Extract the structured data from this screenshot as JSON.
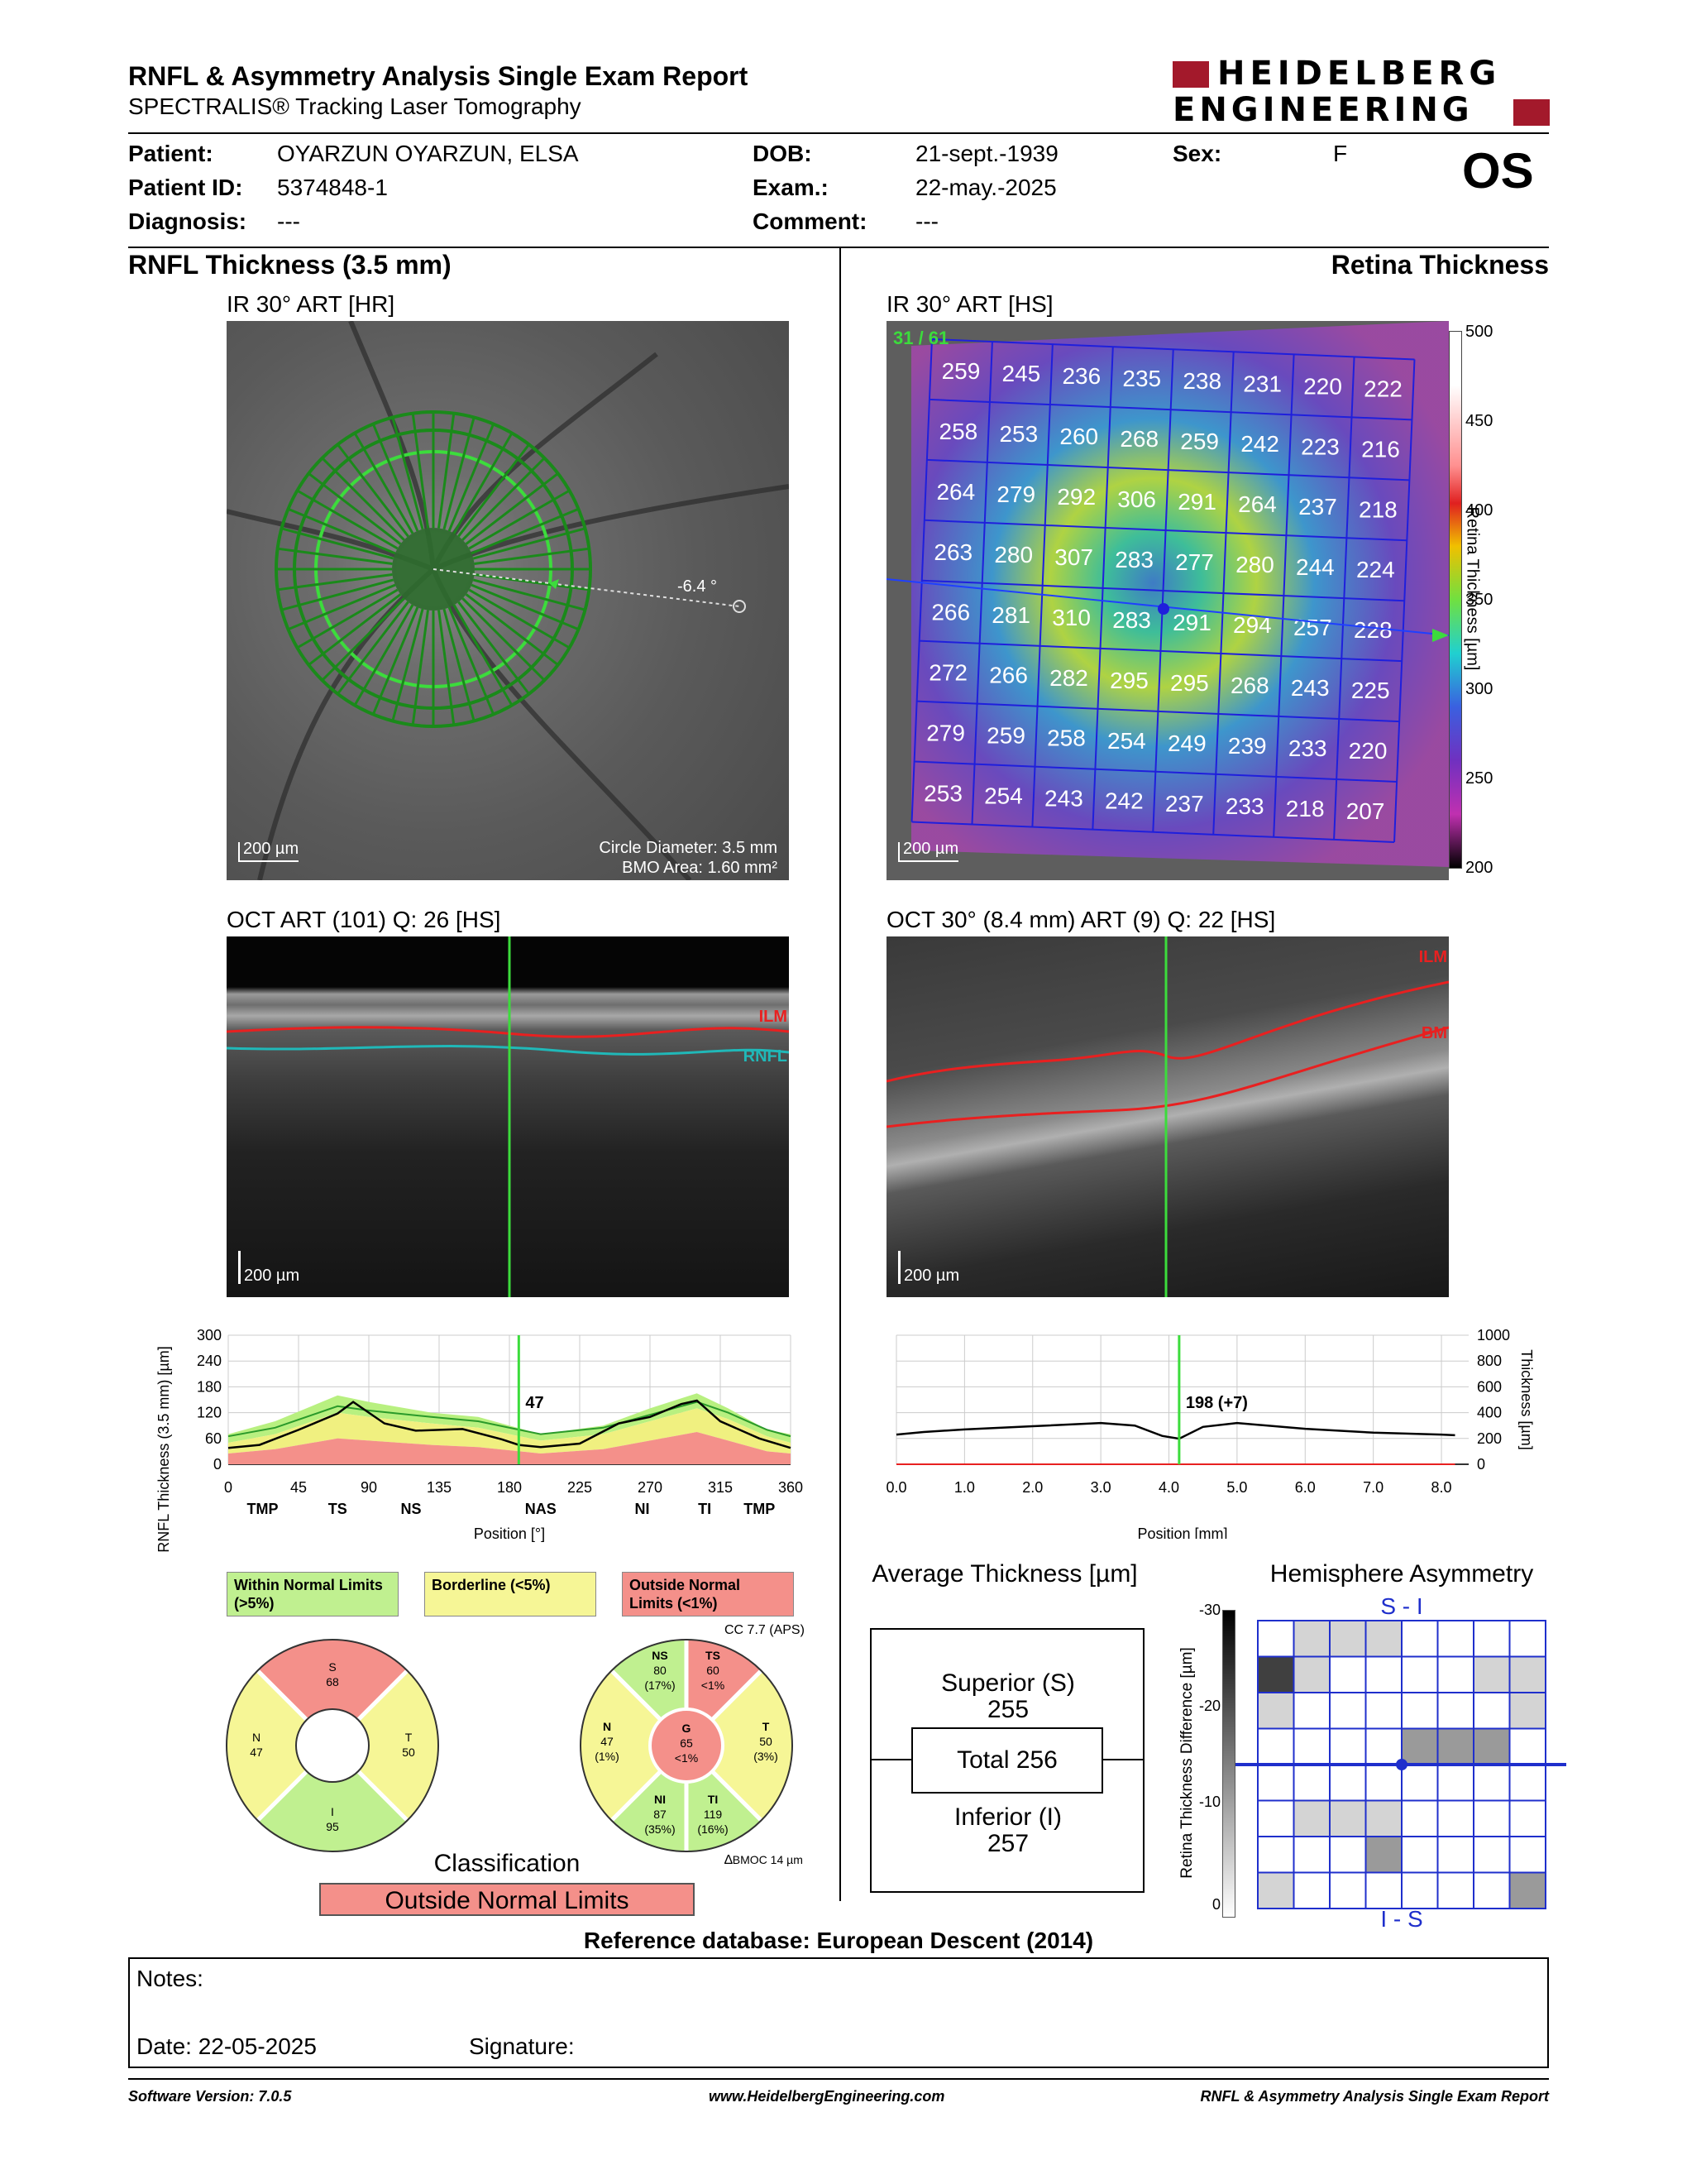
{
  "header": {
    "title": "RNFL & Asymmetry Analysis Single Exam Report",
    "subtitle": "SPECTRALIS® Tracking Laser Tomography",
    "logo_line1": "HEIDELBERG",
    "logo_line2": "ENGINEERING",
    "eye": "OS"
  },
  "patient": {
    "patient_label": "Patient:",
    "patient_value": "OYARZUN OYARZUN, ELSA",
    "id_label": "Patient ID:",
    "id_value": "5374848-1",
    "diagnosis_label": "Diagnosis:",
    "diagnosis_value": "---",
    "dob_label": "DOB:",
    "dob_value": "21-sept.-1939",
    "exam_label": "Exam.:",
    "exam_value": "22-may.-2025",
    "comment_label": "Comment:",
    "comment_value": "---",
    "sex_label": "Sex:",
    "sex_value": "F"
  },
  "left": {
    "section_title": "RNFL Thickness (3.5 mm)",
    "ir_label": "IR 30° ART [HR]",
    "ir_scale": "200 µm",
    "ir_angle": "-6.4 °",
    "circle_diameter": "Circle Diameter: 3.5 mm",
    "bmo_area": "BMO Area: 1.60 mm²",
    "oct_label": "OCT ART (101) Q: 26 [HS]",
    "oct_scale": "200 µm",
    "ilm": "ILM",
    "rnfl": "RNFL"
  },
  "right": {
    "section_title": "Retina Thickness",
    "ir_label": "IR 30° ART [HS]",
    "ir_scale": "200 µm",
    "grid_counter": "31 / 61",
    "colorbar_label": "Retina Thickness [µm]",
    "colorbar_ticks": [
      "500",
      "450",
      "400",
      "350",
      "300",
      "250",
      "200"
    ],
    "oct_label": "OCT 30° (8.4 mm) ART (9) Q: 22 [HS]",
    "oct_scale": "200 µm",
    "ilm": "ILM",
    "bm": "BM"
  },
  "grid": [
    [
      259,
      245,
      236,
      235,
      238,
      231,
      220,
      222
    ],
    [
      258,
      253,
      260,
      268,
      259,
      242,
      223,
      216
    ],
    [
      264,
      279,
      292,
      306,
      291,
      264,
      237,
      218
    ],
    [
      263,
      280,
      307,
      283,
      277,
      280,
      244,
      224
    ],
    [
      266,
      281,
      310,
      283,
      291,
      294,
      257,
      228
    ],
    [
      272,
      266,
      282,
      295,
      295,
      268,
      243,
      225
    ],
    [
      279,
      259,
      258,
      254,
      249,
      239,
      233,
      220
    ],
    [
      253,
      254,
      243,
      242,
      237,
      233,
      218,
      207
    ]
  ],
  "chart_data": [
    {
      "type": "line",
      "ylabel": "RNFL Thickness (3.5 mm) [µm]",
      "xlabel": "Position [°]",
      "xlim": [
        0,
        360
      ],
      "ylim": [
        0,
        300
      ],
      "x_ticks": [
        "0",
        "45",
        "90",
        "135",
        "180",
        "225",
        "270",
        "315",
        "360"
      ],
      "y_ticks": [
        "0",
        "60",
        "120",
        "180",
        "240",
        "300"
      ],
      "sector_labels": [
        "TMP",
        "TS",
        "NS",
        "NAS",
        "NI",
        "TI",
        "TMP"
      ],
      "cursor_value": "47",
      "cursor_x": 186,
      "series": [
        {
          "values_x": [
            0,
            20,
            45,
            70,
            80,
            100,
            120,
            150,
            175,
            186,
            200,
            225,
            250,
            270,
            290,
            300,
            315,
            340,
            360
          ],
          "values_y": [
            38,
            45,
            80,
            118,
            145,
            95,
            78,
            82,
            58,
            45,
            40,
            48,
            95,
            110,
            140,
            148,
            100,
            60,
            38
          ]
        }
      ]
    },
    {
      "type": "line",
      "ylabel": "Thickness [µm]",
      "xlabel": "Position [mm]",
      "xlim": [
        0,
        8.4
      ],
      "ylim": [
        0,
        1000
      ],
      "x_ticks": [
        "0.0",
        "1.0",
        "2.0",
        "3.0",
        "4.0",
        "5.0",
        "6.0",
        "7.0",
        "8.0"
      ],
      "y_ticks": [
        "0",
        "200",
        "400",
        "600",
        "800",
        "1000"
      ],
      "cursor_value": "198 (+7)",
      "cursor_x": 4.15,
      "series": [
        {
          "values_x": [
            0,
            0.4,
            1.0,
            2.0,
            3.0,
            3.5,
            3.9,
            4.15,
            4.5,
            5.0,
            6.0,
            7.0,
            8.0,
            8.2
          ],
          "values_y": [
            230,
            250,
            270,
            295,
            320,
            300,
            220,
            198,
            290,
            320,
            275,
            245,
            230,
            225
          ]
        }
      ]
    }
  ],
  "classification_legend": {
    "within": "Within Normal Limits (>5%)",
    "borderline": "Borderline (<5%)",
    "outside": "Outside Normal Limits (<1%)"
  },
  "sectors_4": {
    "S": "S",
    "S_val": "68",
    "N": "N",
    "N_val": "47",
    "T": "T",
    "T_val": "50",
    "I": "I",
    "I_val": "95"
  },
  "sectors_6": {
    "cc_label": "CC 7.7 (APS)",
    "NS": "NS",
    "NS_val": "80",
    "NS_pct": "(17%)",
    "TS": "TS",
    "TS_val": "60",
    "TS_pct": "<1%",
    "N": "N",
    "N_val": "47",
    "N_pct": "(1%)",
    "G": "G",
    "G_val": "65",
    "G_pct": "<1%",
    "T": "T",
    "T_val": "50",
    "T_pct": "(3%)",
    "NI": "NI",
    "NI_val": "87",
    "NI_pct": "(35%)",
    "TI": "TI",
    "TI_val": "119",
    "TI_pct": "(16%)",
    "bmoc": "BMOC 14 µm"
  },
  "classification": {
    "title": "Classification",
    "value": "Outside Normal Limits"
  },
  "average_thickness": {
    "title": "Average Thickness [µm]",
    "superior_label": "Superior (S)",
    "superior_value": "255",
    "total": "Total 256",
    "inferior_label": "Inferior (I)",
    "inferior_value": "257"
  },
  "hemisphere": {
    "title": "Hemisphere Asymmetry",
    "top_label": "S - I",
    "bottom_label": "I - S",
    "axis_label": "Retina Thickness Difference [µm]",
    "ticks": [
      "-30",
      "-20",
      "-10",
      "0"
    ],
    "cells": [
      [
        0,
        1,
        1,
        1,
        0,
        0,
        0,
        0
      ],
      [
        3,
        1,
        0,
        0,
        0,
        0,
        1,
        1
      ],
      [
        1,
        0,
        0,
        0,
        0,
        0,
        0,
        1
      ],
      [
        0,
        0,
        0,
        0,
        2,
        2,
        2,
        0
      ],
      [
        0,
        0,
        0,
        0,
        0,
        0,
        0,
        0
      ],
      [
        0,
        1,
        1,
        1,
        0,
        0,
        0,
        0
      ],
      [
        0,
        0,
        0,
        2,
        0,
        0,
        0,
        0
      ],
      [
        1,
        0,
        0,
        0,
        0,
        0,
        0,
        2
      ]
    ]
  },
  "reference_db": "Reference database: European Descent (2014)",
  "notes": {
    "notes_label": "Notes:",
    "date_label": "Date: 22-05-2025",
    "signature_label": "Signature:"
  },
  "footer": {
    "software": "Software Version: 7.0.5",
    "website": "www.HeidelbergEngineering.com",
    "report": "RNFL & Asymmetry Analysis Single Exam Report"
  }
}
